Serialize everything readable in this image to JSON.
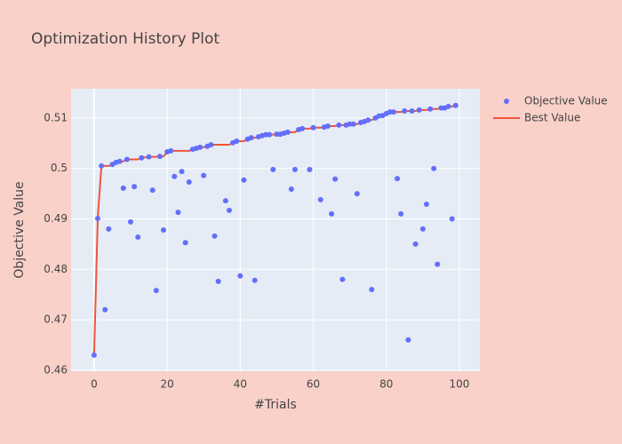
{
  "chart_data": {
    "type": "scatter-line",
    "title": "Optimization History Plot",
    "x_label": "#Trials",
    "y_label": "Objective Value",
    "x": [
      0,
      1,
      2,
      3,
      4,
      5,
      6,
      7,
      8,
      9,
      10,
      11,
      12,
      13,
      15,
      16,
      17,
      18,
      19,
      20,
      21,
      22,
      23,
      24,
      25,
      26,
      27,
      28,
      29,
      30,
      31,
      32,
      33,
      34,
      36,
      37,
      38,
      39,
      40,
      41,
      42,
      43,
      44,
      45,
      46,
      47,
      48,
      49,
      50,
      51,
      52,
      53,
      54,
      55,
      56,
      57,
      59,
      60,
      62,
      63,
      64,
      65,
      66,
      67,
      68,
      69,
      70,
      71,
      72,
      73,
      74,
      75,
      76,
      77,
      78,
      79,
      80,
      81,
      82,
      83,
      84,
      85,
      86,
      87,
      88,
      89,
      90,
      91,
      92,
      93,
      94,
      95,
      96,
      97,
      98,
      99
    ],
    "series": [
      {
        "name": "Objective Value",
        "color": "#636efa",
        "mode": "markers",
        "values": [
          0.463,
          0.4901,
          0.5005,
          0.472,
          0.488,
          0.5008,
          0.5012,
          0.5014,
          0.4961,
          0.5018,
          0.4894,
          0.4964,
          0.4864,
          0.5021,
          0.5023,
          0.4957,
          0.4758,
          0.5024,
          0.4878,
          0.5033,
          0.5035,
          0.4984,
          0.4913,
          0.4994,
          0.4853,
          0.4973,
          0.5038,
          0.504,
          0.5042,
          0.4986,
          0.5044,
          0.5047,
          0.4866,
          0.4776,
          0.4936,
          0.4917,
          0.5051,
          0.5054,
          0.4787,
          0.4977,
          0.5058,
          0.5061,
          0.4778,
          0.5063,
          0.5065,
          0.5067,
          0.5067,
          0.4998,
          0.5068,
          0.5068,
          0.507,
          0.5072,
          0.4959,
          0.4998,
          0.5077,
          0.5079,
          0.4998,
          0.5081,
          0.4938,
          0.5082,
          0.5084,
          0.491,
          0.4979,
          0.5086,
          0.478,
          0.5086,
          0.5088,
          0.5088,
          0.495,
          0.5091,
          0.5093,
          0.5096,
          0.476,
          0.51,
          0.5104,
          0.5105,
          0.5109,
          0.5112,
          0.5112,
          0.498,
          0.491,
          0.5114,
          0.466,
          0.5114,
          0.485,
          0.5116,
          0.488,
          0.4929,
          0.5118,
          0.5,
          0.481,
          0.512,
          0.512,
          0.5123,
          0.49,
          0.5125
        ]
      },
      {
        "name": "Best Value",
        "color": "#ef553b",
        "mode": "lines",
        "values": [
          0.463,
          0.4901,
          0.5005,
          0.5005,
          0.5005,
          0.5008,
          0.5012,
          0.5014,
          0.5014,
          0.5018,
          0.5018,
          0.5018,
          0.5018,
          0.5021,
          0.5023,
          0.5023,
          0.5023,
          0.5024,
          0.5024,
          0.5033,
          0.5035,
          0.5035,
          0.5035,
          0.5035,
          0.5035,
          0.5035,
          0.5038,
          0.504,
          0.5042,
          0.5042,
          0.5044,
          0.5047,
          0.5047,
          0.5047,
          0.5047,
          0.5047,
          0.5051,
          0.5054,
          0.5054,
          0.5054,
          0.5058,
          0.5061,
          0.5061,
          0.5063,
          0.5065,
          0.5067,
          0.5067,
          0.5067,
          0.5068,
          0.5068,
          0.507,
          0.5072,
          0.5072,
          0.5072,
          0.5077,
          0.5079,
          0.5079,
          0.5081,
          0.5081,
          0.5082,
          0.5084,
          0.5084,
          0.5084,
          0.5086,
          0.5086,
          0.5086,
          0.5088,
          0.5088,
          0.5088,
          0.5091,
          0.5093,
          0.5096,
          0.5096,
          0.51,
          0.5104,
          0.5105,
          0.5109,
          0.5112,
          0.5112,
          0.5112,
          0.5112,
          0.5114,
          0.5114,
          0.5114,
          0.5114,
          0.5116,
          0.5116,
          0.5116,
          0.5118,
          0.5118,
          0.5118,
          0.512,
          0.512,
          0.5123,
          0.5123,
          0.5125
        ]
      }
    ],
    "xlim": [
      -6.3,
      105.6
    ],
    "xticks": [
      0,
      20,
      40,
      60,
      80,
      100
    ],
    "ylim": [
      0.4598,
      0.5158
    ],
    "yticks": [
      0.46,
      0.47,
      0.48,
      0.49,
      0.5,
      0.51
    ],
    "grid": true,
    "legend": "right",
    "plot_background": "#e5ecf6"
  }
}
